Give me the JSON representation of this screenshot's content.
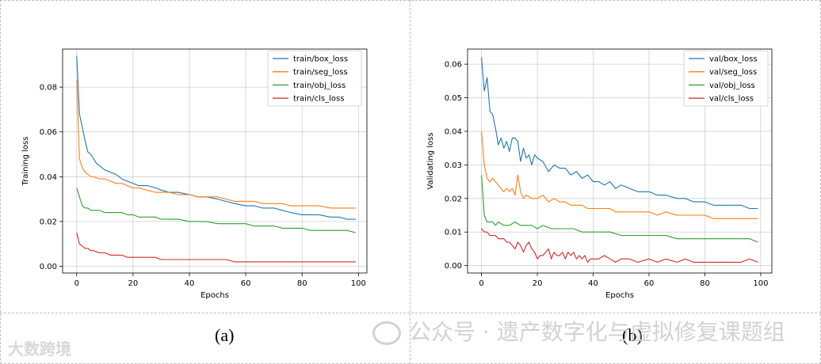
{
  "captions": {
    "left": "(a)",
    "right": "(b)"
  },
  "watermark": {
    "text": "公众号 · 遗产数字化与虚拟修复课题组",
    "corner_text": "大数跨境",
    "icon": "wechat-icon"
  },
  "chart_data": [
    {
      "type": "line",
      "xlabel": "Epochs",
      "ylabel": "Training loss",
      "xlim": [
        -5,
        103
      ],
      "ylim": [
        -0.003,
        0.097
      ],
      "xticks": [
        0,
        20,
        40,
        60,
        80,
        100
      ],
      "xtick_labels": [
        "0",
        "20",
        "40",
        "60",
        "80",
        "100"
      ],
      "yticks": [
        0.0,
        0.02,
        0.04,
        0.06,
        0.08
      ],
      "ytick_labels": [
        "0.00",
        "0.02",
        "0.04",
        "0.06",
        "0.08"
      ],
      "grid": true,
      "legend_position": "top-right",
      "series": [
        {
          "name": "train/box_loss",
          "color": "#1f77b4",
          "x": [
            0,
            1,
            2,
            3,
            4,
            5,
            6,
            7,
            8,
            9,
            10,
            12,
            14,
            16,
            18,
            20,
            22,
            25,
            28,
            30,
            33,
            36,
            40,
            43,
            46,
            50,
            53,
            56,
            60,
            63,
            66,
            70,
            73,
            76,
            80,
            83,
            86,
            90,
            93,
            96,
            99
          ],
          "y": [
            0.094,
            0.068,
            0.062,
            0.056,
            0.051,
            0.05,
            0.048,
            0.046,
            0.045,
            0.044,
            0.043,
            0.042,
            0.041,
            0.039,
            0.038,
            0.037,
            0.036,
            0.036,
            0.035,
            0.034,
            0.033,
            0.033,
            0.032,
            0.031,
            0.031,
            0.03,
            0.029,
            0.028,
            0.027,
            0.027,
            0.026,
            0.026,
            0.025,
            0.024,
            0.023,
            0.023,
            0.023,
            0.022,
            0.022,
            0.021,
            0.021
          ]
        },
        {
          "name": "train/seg_loss",
          "color": "#ff7f0e",
          "x": [
            0,
            1,
            2,
            3,
            4,
            5,
            6,
            8,
            10,
            12,
            14,
            16,
            18,
            20,
            22,
            25,
            28,
            30,
            33,
            36,
            40,
            43,
            46,
            50,
            53,
            56,
            60,
            63,
            66,
            70,
            73,
            76,
            80,
            83,
            86,
            90,
            93,
            96,
            99
          ],
          "y": [
            0.083,
            0.048,
            0.044,
            0.042,
            0.041,
            0.04,
            0.04,
            0.039,
            0.039,
            0.038,
            0.037,
            0.037,
            0.036,
            0.035,
            0.035,
            0.034,
            0.033,
            0.033,
            0.033,
            0.032,
            0.032,
            0.031,
            0.031,
            0.031,
            0.03,
            0.029,
            0.029,
            0.029,
            0.028,
            0.028,
            0.028,
            0.027,
            0.027,
            0.027,
            0.027,
            0.026,
            0.026,
            0.026,
            0.026
          ]
        },
        {
          "name": "train/obj_loss",
          "color": "#2ca02c",
          "x": [
            0,
            1,
            2,
            3,
            4,
            5,
            6,
            8,
            10,
            12,
            14,
            16,
            18,
            20,
            22,
            25,
            28,
            30,
            33,
            36,
            40,
            43,
            46,
            50,
            53,
            56,
            60,
            63,
            66,
            70,
            73,
            76,
            80,
            83,
            86,
            90,
            93,
            96,
            99
          ],
          "y": [
            0.035,
            0.031,
            0.027,
            0.026,
            0.026,
            0.025,
            0.025,
            0.025,
            0.024,
            0.024,
            0.024,
            0.024,
            0.023,
            0.023,
            0.022,
            0.022,
            0.022,
            0.021,
            0.021,
            0.021,
            0.02,
            0.02,
            0.02,
            0.019,
            0.019,
            0.019,
            0.019,
            0.018,
            0.018,
            0.018,
            0.017,
            0.017,
            0.017,
            0.016,
            0.016,
            0.016,
            0.016,
            0.016,
            0.015
          ]
        },
        {
          "name": "train/cls_loss",
          "color": "#d62728",
          "x": [
            0,
            1,
            2,
            3,
            4,
            5,
            6,
            8,
            10,
            12,
            14,
            16,
            18,
            20,
            22,
            25,
            28,
            30,
            33,
            36,
            40,
            43,
            46,
            50,
            53,
            56,
            60,
            63,
            66,
            70,
            73,
            76,
            80,
            83,
            86,
            90,
            93,
            96,
            99
          ],
          "y": [
            0.015,
            0.01,
            0.009,
            0.008,
            0.008,
            0.007,
            0.007,
            0.006,
            0.006,
            0.005,
            0.005,
            0.005,
            0.004,
            0.004,
            0.004,
            0.004,
            0.004,
            0.003,
            0.003,
            0.003,
            0.003,
            0.003,
            0.003,
            0.003,
            0.003,
            0.002,
            0.002,
            0.002,
            0.002,
            0.002,
            0.002,
            0.002,
            0.002,
            0.002,
            0.002,
            0.002,
            0.002,
            0.002,
            0.002
          ]
        }
      ]
    },
    {
      "type": "line",
      "xlabel": "Epochs",
      "ylabel": "Validating loss",
      "xlim": [
        -5,
        104
      ],
      "ylim": [
        -0.0022,
        0.0645
      ],
      "xticks": [
        0,
        20,
        40,
        60,
        80,
        100
      ],
      "xtick_labels": [
        "0",
        "20",
        "40",
        "60",
        "80",
        "100"
      ],
      "yticks": [
        0.0,
        0.01,
        0.02,
        0.03,
        0.04,
        0.05,
        0.06
      ],
      "ytick_labels": [
        "0.00",
        "0.01",
        "0.02",
        "0.03",
        "0.04",
        "0.05",
        "0.06"
      ],
      "grid": true,
      "legend_position": "top-right",
      "series": [
        {
          "name": "val/box_loss",
          "color": "#1f77b4",
          "x": [
            0,
            1,
            2,
            3,
            4,
            5,
            6,
            7,
            8,
            9,
            10,
            11,
            12,
            13,
            14,
            15,
            16,
            17,
            18,
            19,
            20,
            22,
            24,
            26,
            28,
            30,
            32,
            34,
            36,
            38,
            40,
            42,
            44,
            46,
            48,
            50,
            53,
            56,
            60,
            63,
            66,
            70,
            73,
            76,
            80,
            83,
            86,
            90,
            93,
            96,
            99
          ],
          "y": [
            0.062,
            0.052,
            0.056,
            0.046,
            0.045,
            0.041,
            0.036,
            0.038,
            0.035,
            0.037,
            0.034,
            0.038,
            0.038,
            0.037,
            0.031,
            0.035,
            0.032,
            0.033,
            0.03,
            0.033,
            0.032,
            0.031,
            0.028,
            0.03,
            0.029,
            0.029,
            0.027,
            0.028,
            0.026,
            0.027,
            0.025,
            0.025,
            0.024,
            0.025,
            0.023,
            0.024,
            0.023,
            0.022,
            0.022,
            0.021,
            0.021,
            0.02,
            0.02,
            0.019,
            0.019,
            0.018,
            0.018,
            0.018,
            0.018,
            0.017,
            0.017
          ]
        },
        {
          "name": "val/seg_loss",
          "color": "#ff7f0e",
          "x": [
            0,
            1,
            2,
            3,
            4,
            5,
            6,
            7,
            8,
            9,
            10,
            11,
            12,
            13,
            14,
            15,
            16,
            18,
            20,
            22,
            24,
            26,
            28,
            30,
            32,
            34,
            36,
            38,
            40,
            42,
            44,
            46,
            48,
            50,
            53,
            56,
            60,
            63,
            66,
            70,
            73,
            76,
            80,
            83,
            86,
            90,
            93,
            96,
            99
          ],
          "y": [
            0.04,
            0.03,
            0.026,
            0.025,
            0.026,
            0.025,
            0.024,
            0.023,
            0.022,
            0.023,
            0.022,
            0.023,
            0.021,
            0.027,
            0.022,
            0.02,
            0.021,
            0.02,
            0.02,
            0.021,
            0.019,
            0.02,
            0.019,
            0.019,
            0.018,
            0.018,
            0.018,
            0.017,
            0.017,
            0.017,
            0.017,
            0.017,
            0.016,
            0.016,
            0.016,
            0.016,
            0.016,
            0.015,
            0.016,
            0.015,
            0.015,
            0.015,
            0.015,
            0.014,
            0.014,
            0.014,
            0.014,
            0.014,
            0.014
          ]
        },
        {
          "name": "val/obj_loss",
          "color": "#2ca02c",
          "x": [
            0,
            1,
            2,
            3,
            4,
            5,
            6,
            8,
            10,
            12,
            14,
            16,
            18,
            20,
            22,
            25,
            28,
            30,
            33,
            36,
            40,
            43,
            46,
            50,
            53,
            56,
            60,
            63,
            66,
            70,
            73,
            76,
            80,
            83,
            86,
            90,
            93,
            96,
            99
          ],
          "y": [
            0.027,
            0.015,
            0.013,
            0.013,
            0.013,
            0.012,
            0.013,
            0.012,
            0.012,
            0.013,
            0.012,
            0.012,
            0.012,
            0.011,
            0.012,
            0.011,
            0.011,
            0.011,
            0.011,
            0.01,
            0.01,
            0.01,
            0.01,
            0.009,
            0.009,
            0.009,
            0.009,
            0.009,
            0.009,
            0.008,
            0.008,
            0.008,
            0.008,
            0.008,
            0.008,
            0.008,
            0.008,
            0.008,
            0.007
          ]
        },
        {
          "name": "val/cls_loss",
          "color": "#d62728",
          "x": [
            0,
            1,
            2,
            3,
            4,
            5,
            6,
            7,
            8,
            9,
            10,
            11,
            12,
            13,
            14,
            15,
            16,
            17,
            18,
            19,
            20,
            21,
            22,
            23,
            24,
            25,
            26,
            27,
            28,
            29,
            30,
            31,
            32,
            33,
            34,
            35,
            36,
            37,
            38,
            39,
            40,
            42,
            44,
            46,
            48,
            50,
            53,
            56,
            60,
            63,
            66,
            70,
            73,
            76,
            80,
            83,
            86,
            90,
            93,
            96,
            99
          ],
          "y": [
            0.011,
            0.01,
            0.01,
            0.009,
            0.009,
            0.009,
            0.008,
            0.008,
            0.008,
            0.007,
            0.007,
            0.006,
            0.005,
            0.007,
            0.006,
            0.004,
            0.006,
            0.007,
            0.005,
            0.004,
            0.002,
            0.003,
            0.003,
            0.004,
            0.005,
            0.002,
            0.004,
            0.003,
            0.003,
            0.004,
            0.002,
            0.004,
            0.003,
            0.004,
            0.002,
            0.003,
            0.002,
            0.003,
            0.001,
            0.002,
            0.002,
            0.002,
            0.003,
            0.002,
            0.001,
            0.002,
            0.002,
            0.001,
            0.002,
            0.001,
            0.002,
            0.001,
            0.002,
            0.001,
            0.001,
            0.001,
            0.001,
            0.001,
            0.001,
            0.002,
            0.001
          ]
        }
      ]
    }
  ]
}
